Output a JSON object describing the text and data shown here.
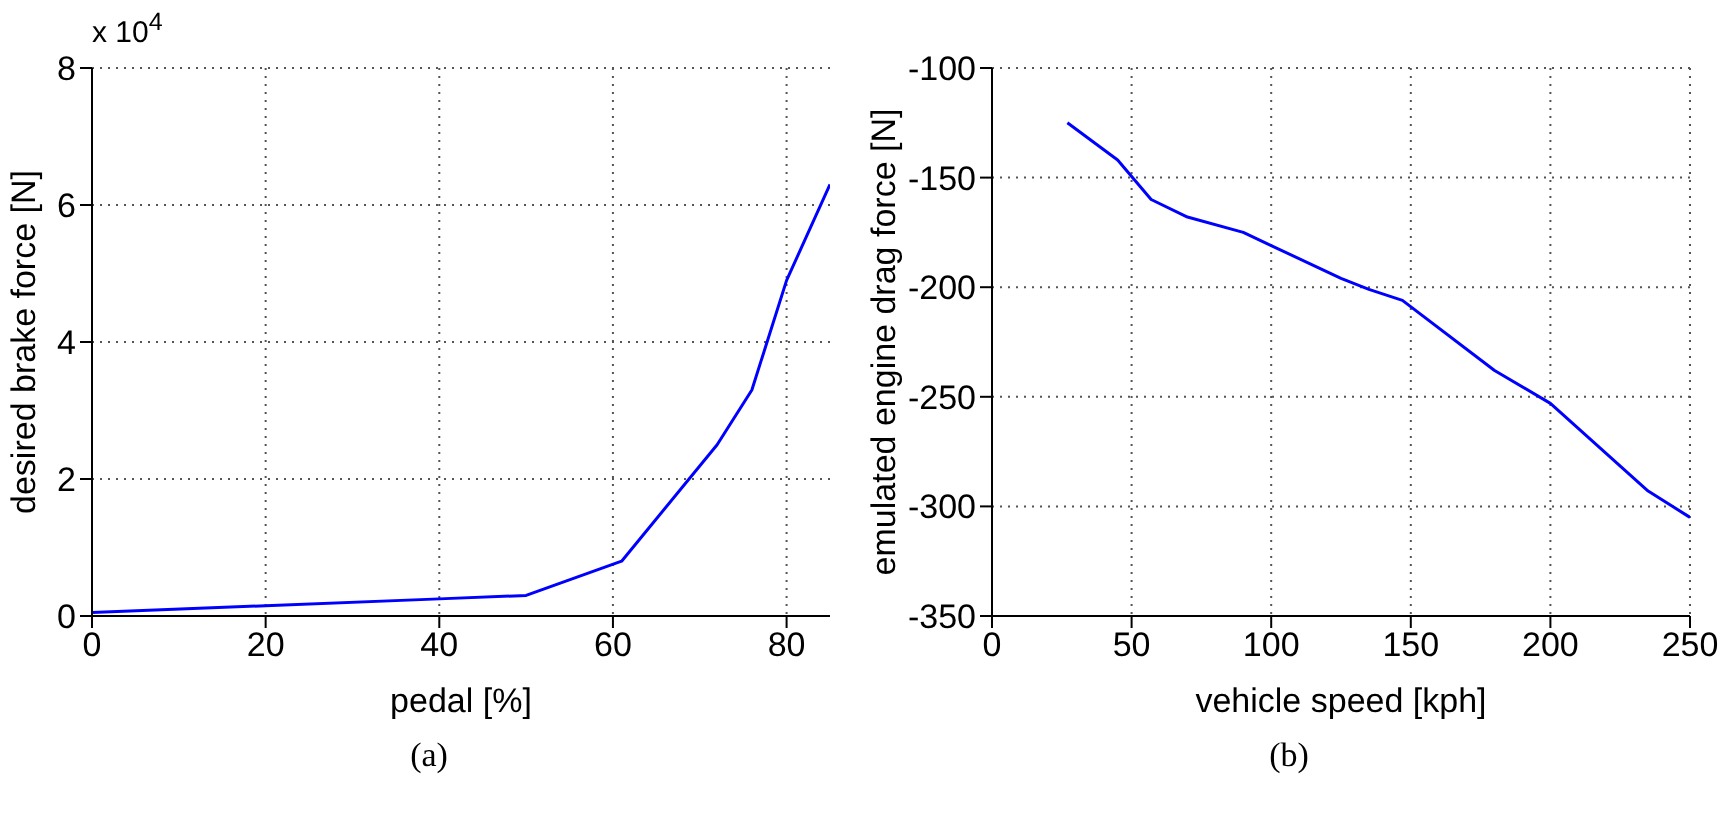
{
  "chart_data": [
    {
      "type": "line",
      "xlabel": "pedal [%]",
      "ylabel": "desired brake force [N]",
      "annotations": [
        "x 10$^{4}$",
        "(a)"
      ],
      "xlim": [
        0,
        85
      ],
      "xticks": [
        0,
        20,
        40,
        60,
        80
      ],
      "ylim": [
        0,
        8
      ],
      "yticks": [
        0,
        2,
        4,
        6,
        8
      ],
      "grid": true,
      "series": [
        {
          "color": "#0000ff",
          "x": [
            0,
            20,
            40,
            50,
            61,
            72,
            76,
            80,
            85
          ],
          "values": [
            0.05,
            0.15,
            0.25,
            0.3,
            0.8,
            2.5,
            3.3,
            4.9,
            6.3
          ]
        }
      ]
    },
    {
      "type": "line",
      "xlabel": "vehicle speed [kph]",
      "ylabel": "emulated engine drag force [N]",
      "annotations": [
        "(b)"
      ],
      "xlim": [
        0,
        250
      ],
      "xticks": [
        0,
        50,
        100,
        150,
        200,
        250
      ],
      "ylim": [
        -350,
        -100
      ],
      "yticks": [
        -350,
        -300,
        -250,
        -200,
        -150,
        -100
      ],
      "grid": true,
      "series": [
        {
          "color": "#0000ff",
          "x": [
            27,
            45,
            57,
            70,
            90,
            100,
            125,
            135,
            147,
            180,
            200,
            235,
            250
          ],
          "values": [
            -125,
            -142,
            -160,
            -168,
            -175,
            -181,
            -196,
            -201,
            -206,
            -238,
            -253,
            -293,
            -305
          ]
        }
      ]
    }
  ]
}
